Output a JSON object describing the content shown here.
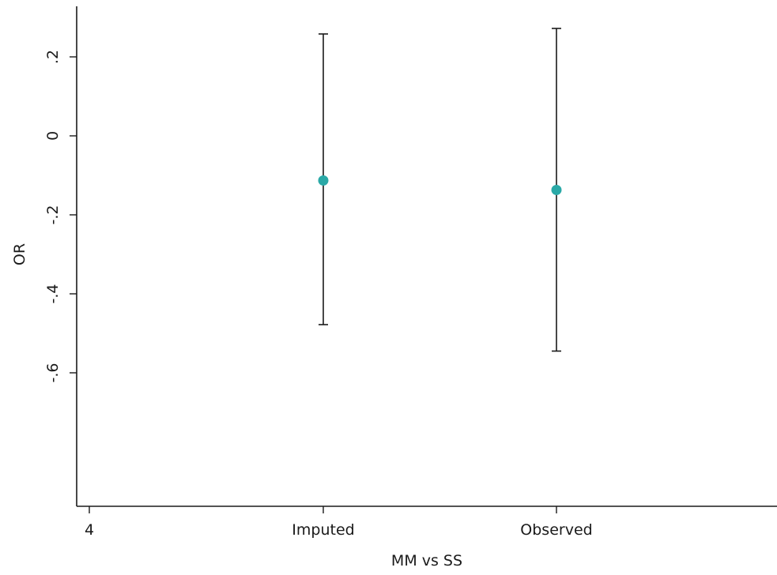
{
  "chart_data": {
    "type": "scatter",
    "title": "",
    "xlabel": "MM vs SS",
    "ylabel": "OR",
    "categories": [
      "Imputed",
      "Observed"
    ],
    "x_tick_labels": [
      "4",
      "Imputed",
      "Observed"
    ],
    "y_ticks": [
      0.2,
      0,
      -0.2,
      -0.4,
      -0.6
    ],
    "y_tick_labels": [
      ".2",
      "0",
      "-.2",
      "-.4",
      "-.6"
    ],
    "ylim": [
      -0.94,
      0.33
    ],
    "grid": false,
    "legend": "none",
    "series": [
      {
        "points": [
          {
            "category": "Imputed",
            "estimate": -0.113,
            "lower": -0.478,
            "upper": 0.258
          },
          {
            "category": "Observed",
            "estimate": -0.137,
            "lower": -0.545,
            "upper": 0.272
          }
        ]
      }
    ],
    "colors": {
      "marker": "#2aa9a7",
      "errorbar": "#1a1a1a",
      "axis": "#1a1a1a"
    }
  }
}
